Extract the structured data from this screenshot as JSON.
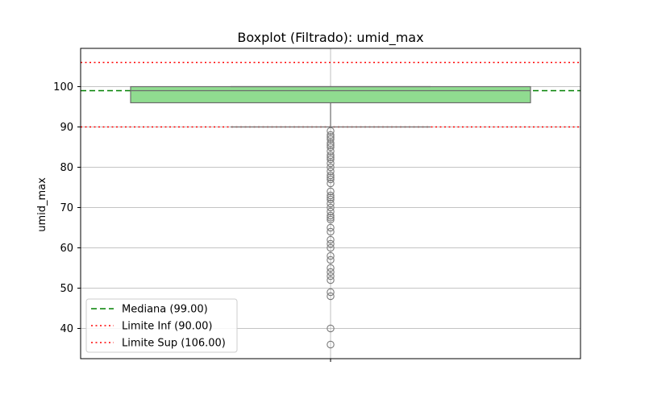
{
  "chart_data": {
    "type": "box",
    "title": "Boxplot (Filtrado): umid_max",
    "xlabel": "",
    "ylabel": "umid_max",
    "ylim": [
      32.5,
      109.5
    ],
    "yticks": [
      40,
      50,
      60,
      70,
      80,
      90,
      100
    ],
    "grid": true,
    "box": {
      "q1": 96,
      "median": 99,
      "q3": 100,
      "whisker_low": 90,
      "whisker_high": 100,
      "color": "#90dc90"
    },
    "outliers": [
      89,
      88,
      87.5,
      87,
      86,
      85.5,
      85,
      84,
      83,
      82.5,
      82,
      81,
      80,
      79,
      78,
      77.5,
      77,
      76,
      74,
      73,
      72.5,
      72,
      71,
      70,
      69,
      68,
      67.5,
      67,
      65,
      64,
      62,
      61,
      60,
      58,
      57,
      55,
      54,
      53,
      52,
      49,
      48,
      40,
      36
    ],
    "reference_lines": [
      {
        "label": "Mediana (99.00)",
        "value": 99,
        "color": "#008000",
        "style": "dashed"
      },
      {
        "label": "Limite Inf (90.00)",
        "value": 90,
        "color": "#ff0000",
        "style": "dotted"
      },
      {
        "label": "Limite Sup (106.00)",
        "value": 106,
        "color": "#ff0000",
        "style": "dotted"
      }
    ],
    "legend_position": "lower-left"
  }
}
